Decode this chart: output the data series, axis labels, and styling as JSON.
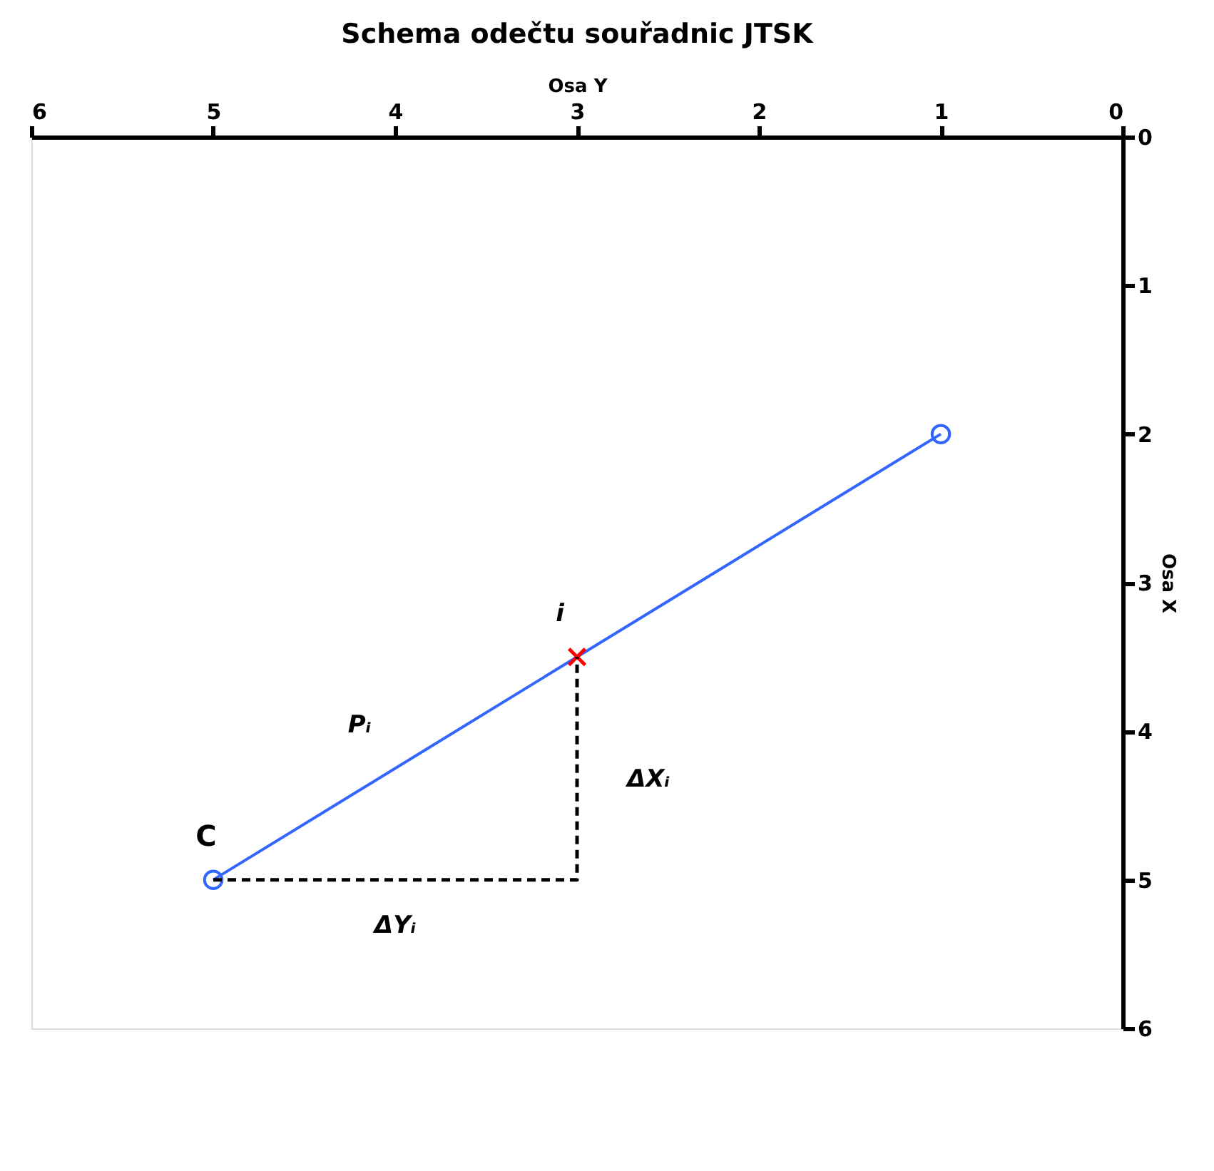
{
  "chart_data": {
    "type": "line",
    "title": "Schema odečtu souřadnic JTSK",
    "xlabel": "Osa Y",
    "ylabel": "Osa X",
    "xlim": [
      6,
      0
    ],
    "xticks": [
      6,
      5,
      4,
      3,
      2,
      1,
      0
    ],
    "ylim": [
      6,
      0
    ],
    "yticks": [
      0,
      1,
      2,
      3,
      4,
      5,
      6
    ],
    "grid": false,
    "series": [
      {
        "color": "#3366ff",
        "x": [
          5,
          1
        ],
        "values": [
          5,
          2
        ],
        "marker": "circle",
        "line_style": "solid"
      },
      {
        "type": "scatter",
        "color": "#ff0000",
        "x": [
          3
        ],
        "values": [
          3.5
        ],
        "marker": "cross"
      },
      {
        "color": "#000000",
        "x": [
          5,
          3,
          3
        ],
        "values": [
          5,
          5,
          3.5
        ],
        "marker": "none",
        "line_style": "dashed"
      }
    ],
    "annotations": [
      {
        "text": "C",
        "x": 5,
        "y": 5
      },
      {
        "text": "i",
        "x": 3,
        "y": 3.5
      },
      {
        "text": "Pᵢ",
        "x": 4,
        "y": 4.25
      },
      {
        "text": "ΔXᵢ",
        "x": 3,
        "y": 4.25
      },
      {
        "text": "ΔYᵢ",
        "x": 4,
        "y": 5
      }
    ]
  }
}
